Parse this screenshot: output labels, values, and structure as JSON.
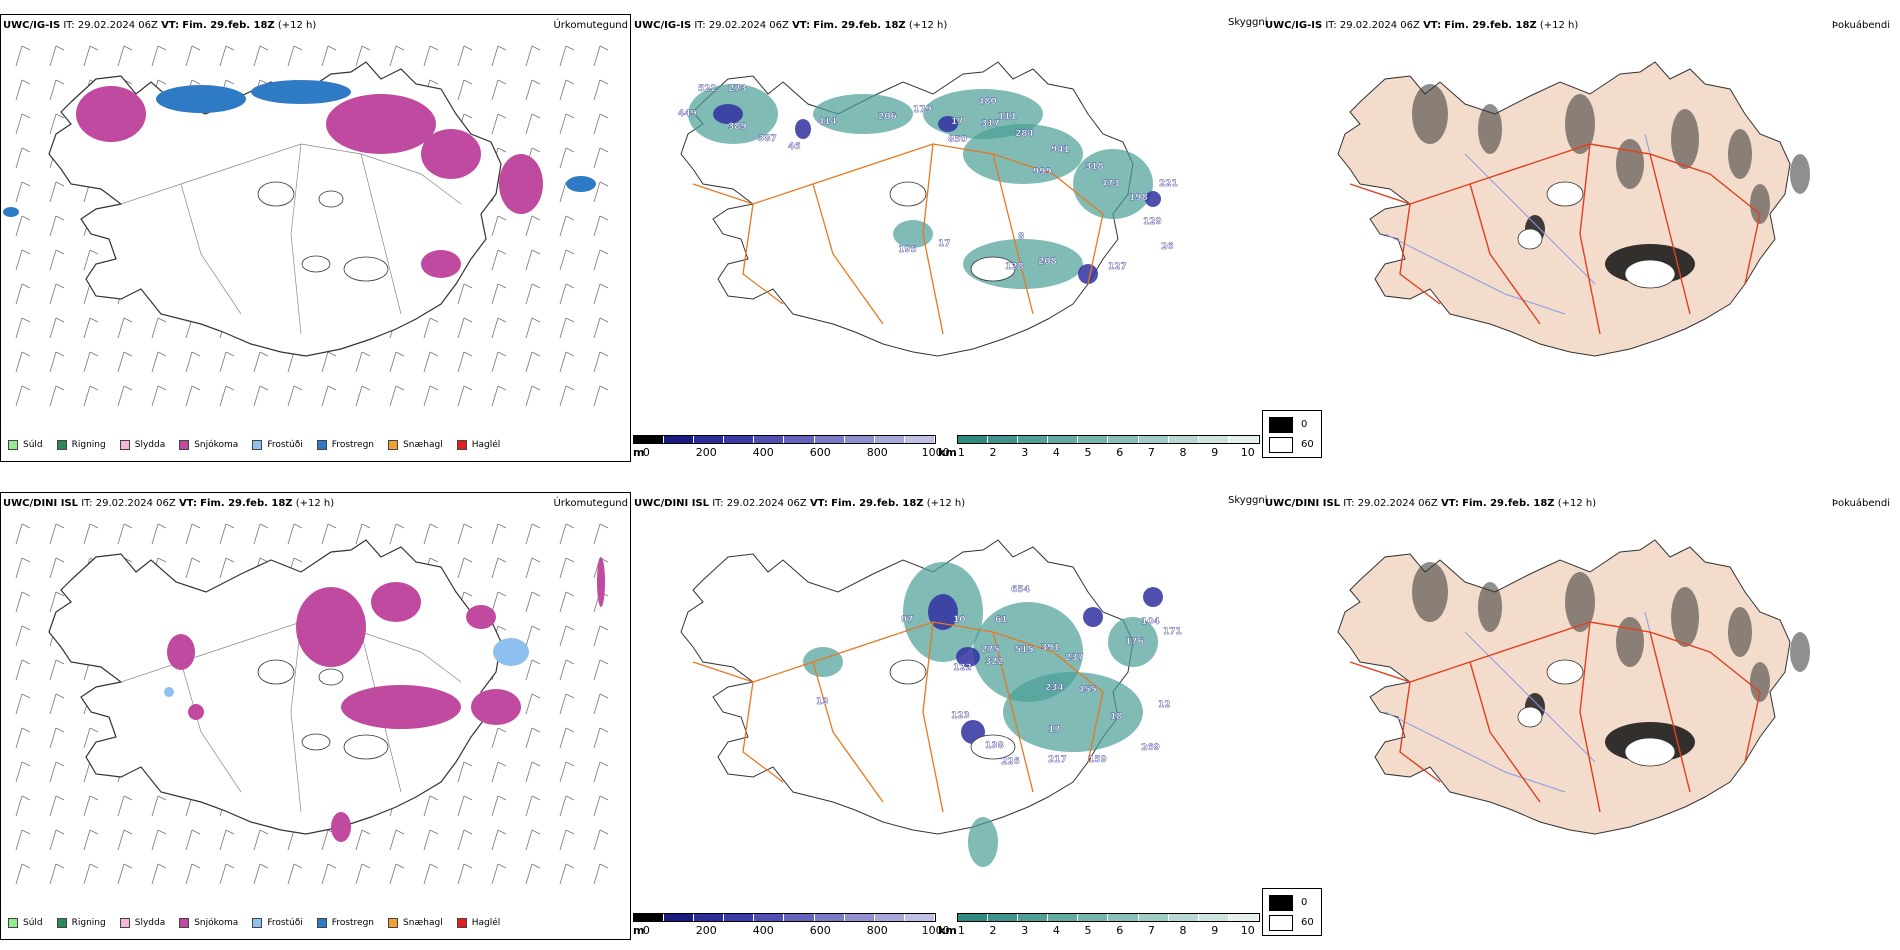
{
  "rows": [
    {
      "id": "igis",
      "panels": [
        {
          "model": "UWC/IG-IS",
          "it_label": "IT:",
          "it_value": "29.02.2024 06Z",
          "vt_label": "VT:",
          "vt_value": "Fim. 29.feb. 18Z",
          "lead": "(+12 h)",
          "title": "Úrkomutegund"
        },
        {
          "model": "UWC/IG-IS",
          "it_label": "IT:",
          "it_value": "29.02.2024 06Z",
          "vt_label": "VT:",
          "vt_value": "Fim. 29.feb. 18Z",
          "lead": "(+12 h)",
          "title": "Skyggni"
        },
        {
          "model": "UWC/IG-IS",
          "it_label": "IT:",
          "it_value": "29.02.2024 06Z",
          "vt_label": "VT:",
          "vt_value": "Fim. 29.feb. 18Z",
          "lead": "(+12 h)",
          "title": "Þokuábendi"
        }
      ],
      "ceiling_labels": [
        "522",
        "273",
        "449",
        "389",
        "387",
        "46",
        "414",
        "206",
        "179",
        "17",
        "480",
        "317",
        "111",
        "284",
        "850",
        "941",
        "999",
        "318",
        "473",
        "198",
        "221",
        "129",
        "26",
        "128",
        "208",
        "127",
        "195",
        "17",
        "8"
      ]
    },
    {
      "id": "dini",
      "panels": [
        {
          "model": "UWC/DINI ISL",
          "it_label": "IT:",
          "it_value": "29.02.2024 06Z",
          "vt_label": "VT:",
          "vt_value": "Fim. 29.feb. 18Z",
          "lead": "(+12 h)",
          "title": "Úrkomutegund"
        },
        {
          "model": "UWC/DINI ISL",
          "it_label": "IT:",
          "it_value": "29.02.2024 06Z",
          "vt_label": "VT:",
          "vt_value": "Fim. 29.feb. 18Z",
          "lead": "(+12 h)",
          "title": "Skyggni"
        },
        {
          "model": "UWC/DINI ISL",
          "it_label": "IT:",
          "it_value": "29.02.2024 06Z",
          "vt_label": "VT:",
          "vt_value": "Fim. 29.feb. 18Z",
          "lead": "(+12 h)",
          "title": "Þokuábendi"
        }
      ],
      "ceiling_labels": [
        "654",
        "97",
        "10",
        "61",
        "275",
        "515",
        "122",
        "322",
        "391",
        "237",
        "104",
        "176",
        "171",
        "455",
        "234",
        "13",
        "123",
        "138",
        "226",
        "217",
        "159",
        "269",
        "18",
        "12",
        "17"
      ]
    }
  ],
  "precip_legend": [
    {
      "label": "Súld",
      "color": "#90ee90"
    },
    {
      "label": "Rigning",
      "color": "#2e8b57"
    },
    {
      "label": "Slydda",
      "color": "#f4b6d8"
    },
    {
      "label": "Snjókoma",
      "color": "#c04aa0"
    },
    {
      "label": "Frostúði",
      "color": "#8ec0f0"
    },
    {
      "label": "Frostregn",
      "color": "#2e7ac4"
    },
    {
      "label": "Snæhagl",
      "color": "#f0a030"
    },
    {
      "label": "Haglél",
      "color": "#e02020"
    }
  ],
  "ceiling_scale": {
    "unit": "m",
    "ticks": [
      "0",
      "200",
      "400",
      "600",
      "800",
      "1000"
    ],
    "colors": [
      "#000000",
      "#1a1a80",
      "#2b2b9a",
      "#3a3aa8",
      "#5050b4",
      "#6464bc",
      "#7a7ac6",
      "#9090d0",
      "#a8a8da",
      "#c0c0e4"
    ]
  },
  "visibility_scale": {
    "unit": "km",
    "ticks": [
      "1",
      "2",
      "3",
      "4",
      "5",
      "6",
      "7",
      "8",
      "9",
      "10"
    ],
    "colors": [
      "#2f8b82",
      "#3f958d",
      "#50a098",
      "#62aaa2",
      "#75b5ad",
      "#8ac0b9",
      "#a0ccc6",
      "#b7d8d3",
      "#cee4e1",
      "#e6f1ef"
    ]
  },
  "fog_legend": {
    "items": [
      {
        "label": "0",
        "color": "#000000"
      },
      {
        "label": "60",
        "color": "#ffffff"
      }
    ]
  },
  "map_colors": {
    "snow": "#c04aa0",
    "freezing_rain": "#2e7ac4",
    "freezing_drizzle": "#8ec0f0",
    "sleet": "#f4b6d8",
    "low_vis": "#4a9e96",
    "low_ceiling": "#3030a0",
    "roads": "#e8781e",
    "land_fog": "#f3dccb",
    "fog_roads": "#e04020",
    "fog_rivers": "#8a9ae8"
  }
}
